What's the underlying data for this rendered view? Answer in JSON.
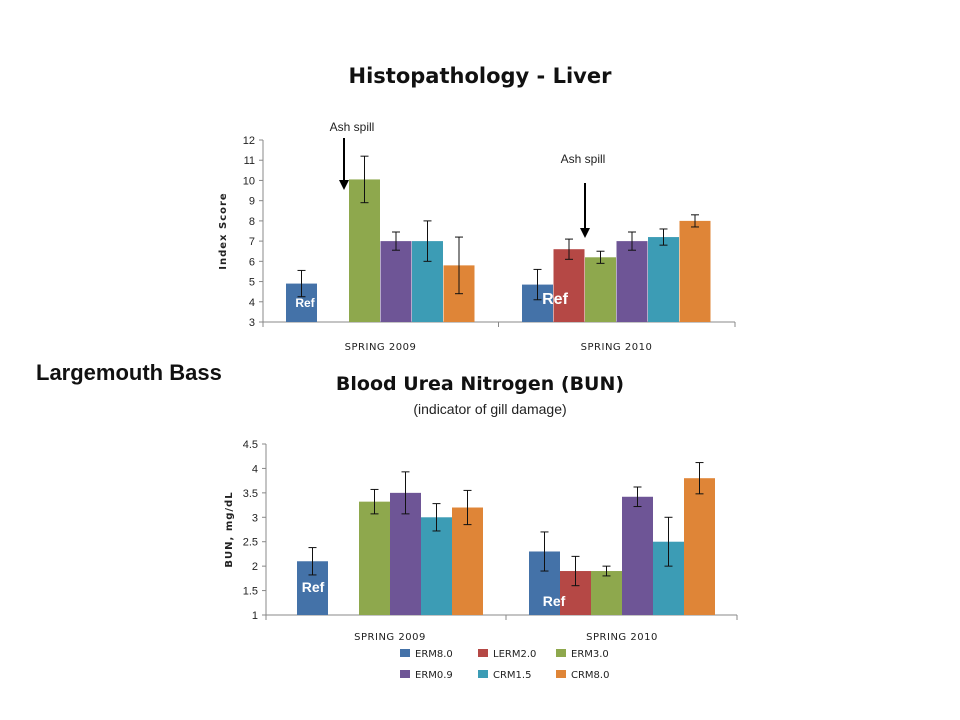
{
  "side_label": "Largemouth Bass",
  "legend": [
    {
      "label": "ERM8.0",
      "color": "#4472a8"
    },
    {
      "label": "LERM2.0",
      "color": "#b54845"
    },
    {
      "label": "ERM3.0",
      "color": "#8ea84d"
    },
    {
      "label": "ERM0.9",
      "color": "#6e5596"
    },
    {
      "label": "CRM1.5",
      "color": "#3c9cb5"
    },
    {
      "label": "CRM8.0",
      "color": "#df8537"
    }
  ],
  "chart_data": [
    {
      "type": "bar",
      "title": "Histopathology - Liver",
      "ylabel": "Index Score",
      "ylim": [
        3,
        12
      ],
      "yticks": [
        "3",
        "4",
        "5",
        "6",
        "7",
        "8",
        "9",
        "10",
        "11",
        "12"
      ],
      "categories": [
        "SPRING 2009",
        "SPRING 2010"
      ],
      "series": [
        {
          "name": "ERM8.0",
          "values": [
            4.9,
            4.85
          ],
          "err": [
            0.65,
            0.75
          ]
        },
        {
          "name": "LERM2.0",
          "values": [
            null,
            6.6
          ],
          "err": [
            null,
            0.5
          ]
        },
        {
          "name": "ERM3.0",
          "values": [
            10.05,
            6.2
          ],
          "err": [
            1.15,
            0.3
          ]
        },
        {
          "name": "ERM0.9",
          "values": [
            7.0,
            7.0
          ],
          "err": [
            0.45,
            0.45
          ]
        },
        {
          "name": "CRM1.5",
          "values": [
            7.0,
            7.2
          ],
          "err": [
            1.0,
            0.4
          ]
        },
        {
          "name": "CRM8.0",
          "values": [
            5.8,
            8.0
          ],
          "err": [
            1.4,
            0.3
          ]
        }
      ],
      "annotations": [
        {
          "text": "Ash spill"
        },
        {
          "text": "Ash spill"
        }
      ],
      "ref_labels": [
        "Ref",
        "Ref"
      ]
    },
    {
      "type": "bar",
      "title": "Blood Urea Nitrogen (BUN)",
      "subtitle": "(indicator of gill damage)",
      "ylabel": "BUN, mg/dL",
      "ylim": [
        1,
        4.5
      ],
      "yticks": [
        "1",
        "1.5",
        "2",
        "2.5",
        "3",
        "3.5",
        "4",
        "4.5"
      ],
      "categories": [
        "SPRING 2009",
        "SPRING 2010"
      ],
      "series": [
        {
          "name": "ERM8.0",
          "values": [
            2.1,
            2.3
          ],
          "err": [
            0.28,
            0.4
          ]
        },
        {
          "name": "LERM2.0",
          "values": [
            null,
            1.9
          ],
          "err": [
            null,
            0.3
          ]
        },
        {
          "name": "ERM3.0",
          "values": [
            3.32,
            1.9
          ],
          "err": [
            0.25,
            0.1
          ]
        },
        {
          "name": "ERM0.9",
          "values": [
            3.5,
            3.42
          ],
          "err": [
            0.43,
            0.2
          ]
        },
        {
          "name": "CRM1.5",
          "values": [
            3.0,
            2.5
          ],
          "err": [
            0.28,
            0.5
          ]
        },
        {
          "name": "CRM8.0",
          "values": [
            3.2,
            3.8
          ],
          "err": [
            0.35,
            0.32
          ]
        }
      ],
      "ref_labels": [
        "Ref",
        "Ref"
      ]
    }
  ]
}
